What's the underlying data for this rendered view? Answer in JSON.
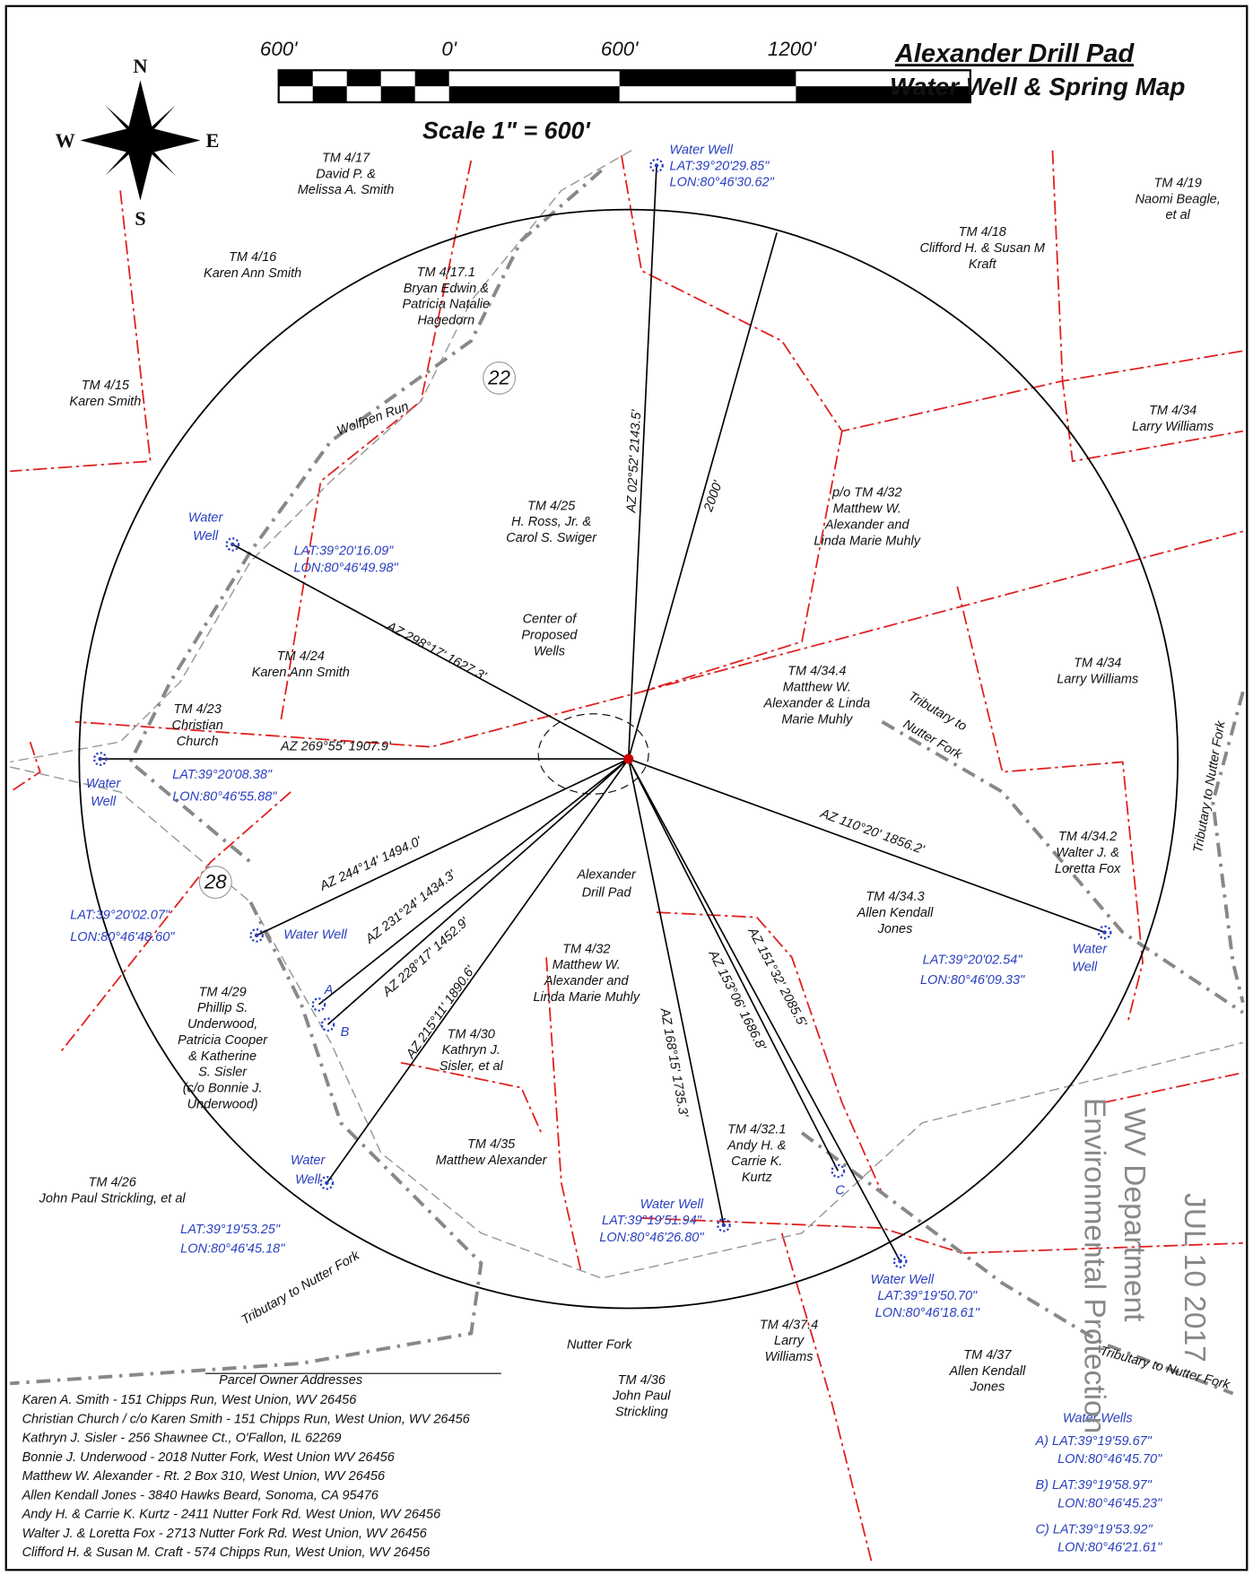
{
  "header": {
    "title": [
      "Alexander Drill Pad",
      "Water Well & Spring Map"
    ],
    "scale_labels": [
      "600'",
      "0'",
      "600'",
      "1200'"
    ],
    "scale_text": "Scale 1\" = 600'"
  },
  "compass": [
    "N",
    "E",
    "S",
    "W"
  ],
  "parcels": [
    {
      "lines": [
        "TM 4/17",
        "David P. &",
        "Melissa A. Smith"
      ]
    },
    {
      "lines": [
        "TM 4/16",
        "Karen Ann Smith"
      ]
    },
    {
      "lines": [
        "TM 4/17.1",
        "Bryan Edwin &",
        "Patricia Natalie",
        "Hagedorn"
      ]
    },
    {
      "lines": [
        "TM 4/15",
        "Karen Smith"
      ]
    },
    {
      "lines": [
        "TM 4/19",
        "Naomi Beagle,",
        "et al"
      ]
    },
    {
      "lines": [
        "TM 4/18",
        "Clifford H. & Susan M",
        "Kraft"
      ]
    },
    {
      "lines": [
        "TM 4/34",
        "Larry Williams"
      ]
    },
    {
      "lines": [
        "TM 4/25",
        "H. Ross, Jr. &",
        "Carol S. Swiger"
      ]
    },
    {
      "lines": [
        "p/o TM 4/32",
        "Matthew W.",
        "Alexander and",
        "Linda Marie Muhly"
      ]
    },
    {
      "lines": [
        "TM 4/24",
        "Karen Ann Smith"
      ]
    },
    {
      "lines": [
        "TM 4/23",
        "Christian",
        "Church"
      ]
    },
    {
      "lines": [
        "TM 4/34.4",
        "Matthew W.",
        "Alexander & Linda",
        "Marie Muhly"
      ]
    },
    {
      "lines": [
        "TM 4/34",
        "Larry Williams"
      ]
    },
    {
      "lines": [
        "TM 4/34.2",
        "Walter J. &",
        "Loretta Fox"
      ]
    },
    {
      "lines": [
        "TM 4/34.3",
        "Allen Kendall",
        "Jones"
      ]
    },
    {
      "lines": [
        "TM 4/32",
        "Matthew W.",
        "Alexander and",
        "Linda Marie Muhly"
      ]
    },
    {
      "lines": [
        "TM 4/29",
        "Phillip S.",
        "Underwood,",
        "Patricia Cooper",
        "& Katherine",
        "S. Sisler",
        "(c/o Bonnie J.",
        "Underwood)"
      ]
    },
    {
      "lines": [
        "TM 4/30",
        "Kathryn J.",
        "Sisler, et al"
      ]
    },
    {
      "lines": [
        "TM 4/35",
        "Matthew Alexander"
      ]
    },
    {
      "lines": [
        "TM 4/32.1",
        "Andy H. &",
        "Carrie K.",
        "Kurtz"
      ]
    },
    {
      "lines": [
        "TM 4/26",
        "John Paul Strickling, et al"
      ]
    },
    {
      "lines": [
        "TM 4/37.4",
        "Larry",
        "Williams"
      ]
    },
    {
      "lines": [
        "TM 4/36",
        "John Paul",
        "Strickling"
      ]
    },
    {
      "lines": [
        "TM 4/37",
        "Allen Kendall",
        "Jones"
      ]
    }
  ],
  "wells": [
    {
      "lines": [
        "Water Well",
        "LAT:39°20'29.85\"",
        "LON:80°46'30.62\""
      ]
    },
    {
      "lines": [
        "Water",
        "Well",
        "LAT:39°20'16.09\"",
        "LON:80°46'49.98\""
      ]
    },
    {
      "lines": [
        "Water",
        "Well",
        "LAT:39°20'08.38\"",
        "LON:80°46'55.88\""
      ]
    },
    {
      "lines": [
        "Water Well",
        "LAT:39°20'02.07\"",
        "LON:80°46'48.60\""
      ]
    },
    {
      "lines": [
        "Water",
        "Well",
        "LAT:39°19'53.25\"",
        "LON:80°46'45.18\""
      ]
    },
    {
      "lines": [
        "Water Well",
        "LAT:39°19'51.94\"",
        "LON:80°46'26.80\""
      ]
    },
    {
      "lines": [
        "Water Well",
        "LAT:39°19'50.70\"",
        "LON:80°46'18.61\""
      ]
    },
    {
      "lines": [
        "Water",
        "Well",
        "LAT:39°20'02.54\"",
        "LON:80°46'09.33\""
      ]
    }
  ],
  "azimuths": [
    "AZ 02°52' 2143.5'",
    "2000'",
    "AZ 298°17' 1627.3'",
    "AZ 269°55' 1907.9'",
    "AZ 110°20' 1856.2'",
    "AZ 244°14' 1494.0'",
    "AZ 231°24' 1434.3'",
    "AZ 228°17' 1452.9'",
    "AZ 215°11' 1890.6'",
    "AZ 168°15' 1735.3'",
    "AZ 153°06' 1686.8'",
    "AZ 151°32' 2085.5'"
  ],
  "labels": {
    "center": [
      "Center of",
      "Proposed",
      "Wells"
    ],
    "pad": [
      "Alexander",
      "Drill Pad"
    ],
    "wolfpen": "Wolfpen Run",
    "trib1": "Tributary to",
    "trib1b": "Nutter Fork",
    "trib2": "Tributary to Nutter Fork",
    "trib3": "Tributary to Nutter Fork",
    "trib4": "Tributary to Nutter Fork",
    "nutter": "Nutter Fork",
    "route22": "22",
    "route28": "28",
    "A": "A",
    "B": "B",
    "C": "C"
  },
  "addresses": {
    "title": "Parcel Owner Addresses",
    "lines": [
      "Karen A. Smith - 151 Chipps Run, West Union, WV 26456",
      "Christian Church / c/o Karen Smith - 151 Chipps Run, West Union, WV 26456",
      "Kathryn J. Sisler - 256 Shawnee Ct., O'Fallon, IL 62269",
      "Bonnie J. Underwood - 2018 Nutter Fork, West Union WV 26456",
      "Matthew W. Alexander - Rt. 2 Box 310, West Union, WV 26456",
      "Allen Kendall Jones - 3840 Hawks Beard, Sonoma, CA 95476",
      "Andy H. & Carrie K. Kurtz - 2411 Nutter Fork Rd. West Union, WV 26456",
      "Walter J. & Loretta Fox - 2713 Nutter Fork Rd. West Union, WV 26456",
      "Clifford H. & Susan M. Craft - 574 Chipps Run, West Union, WV 26456"
    ]
  },
  "legend": {
    "title": "Water Wells",
    "lines": [
      "A) LAT:39°19'59.67\"",
      "LON:80°46'45.70\"",
      "B) LAT:39°19'58.97\"",
      "LON:80°46'45.23\"",
      "C) LAT:39°19'53.92\"",
      "LON:80°46'21.61\""
    ]
  },
  "stamp": [
    "WV Department",
    "Environmental Protection",
    "JUL 10 2017"
  ]
}
